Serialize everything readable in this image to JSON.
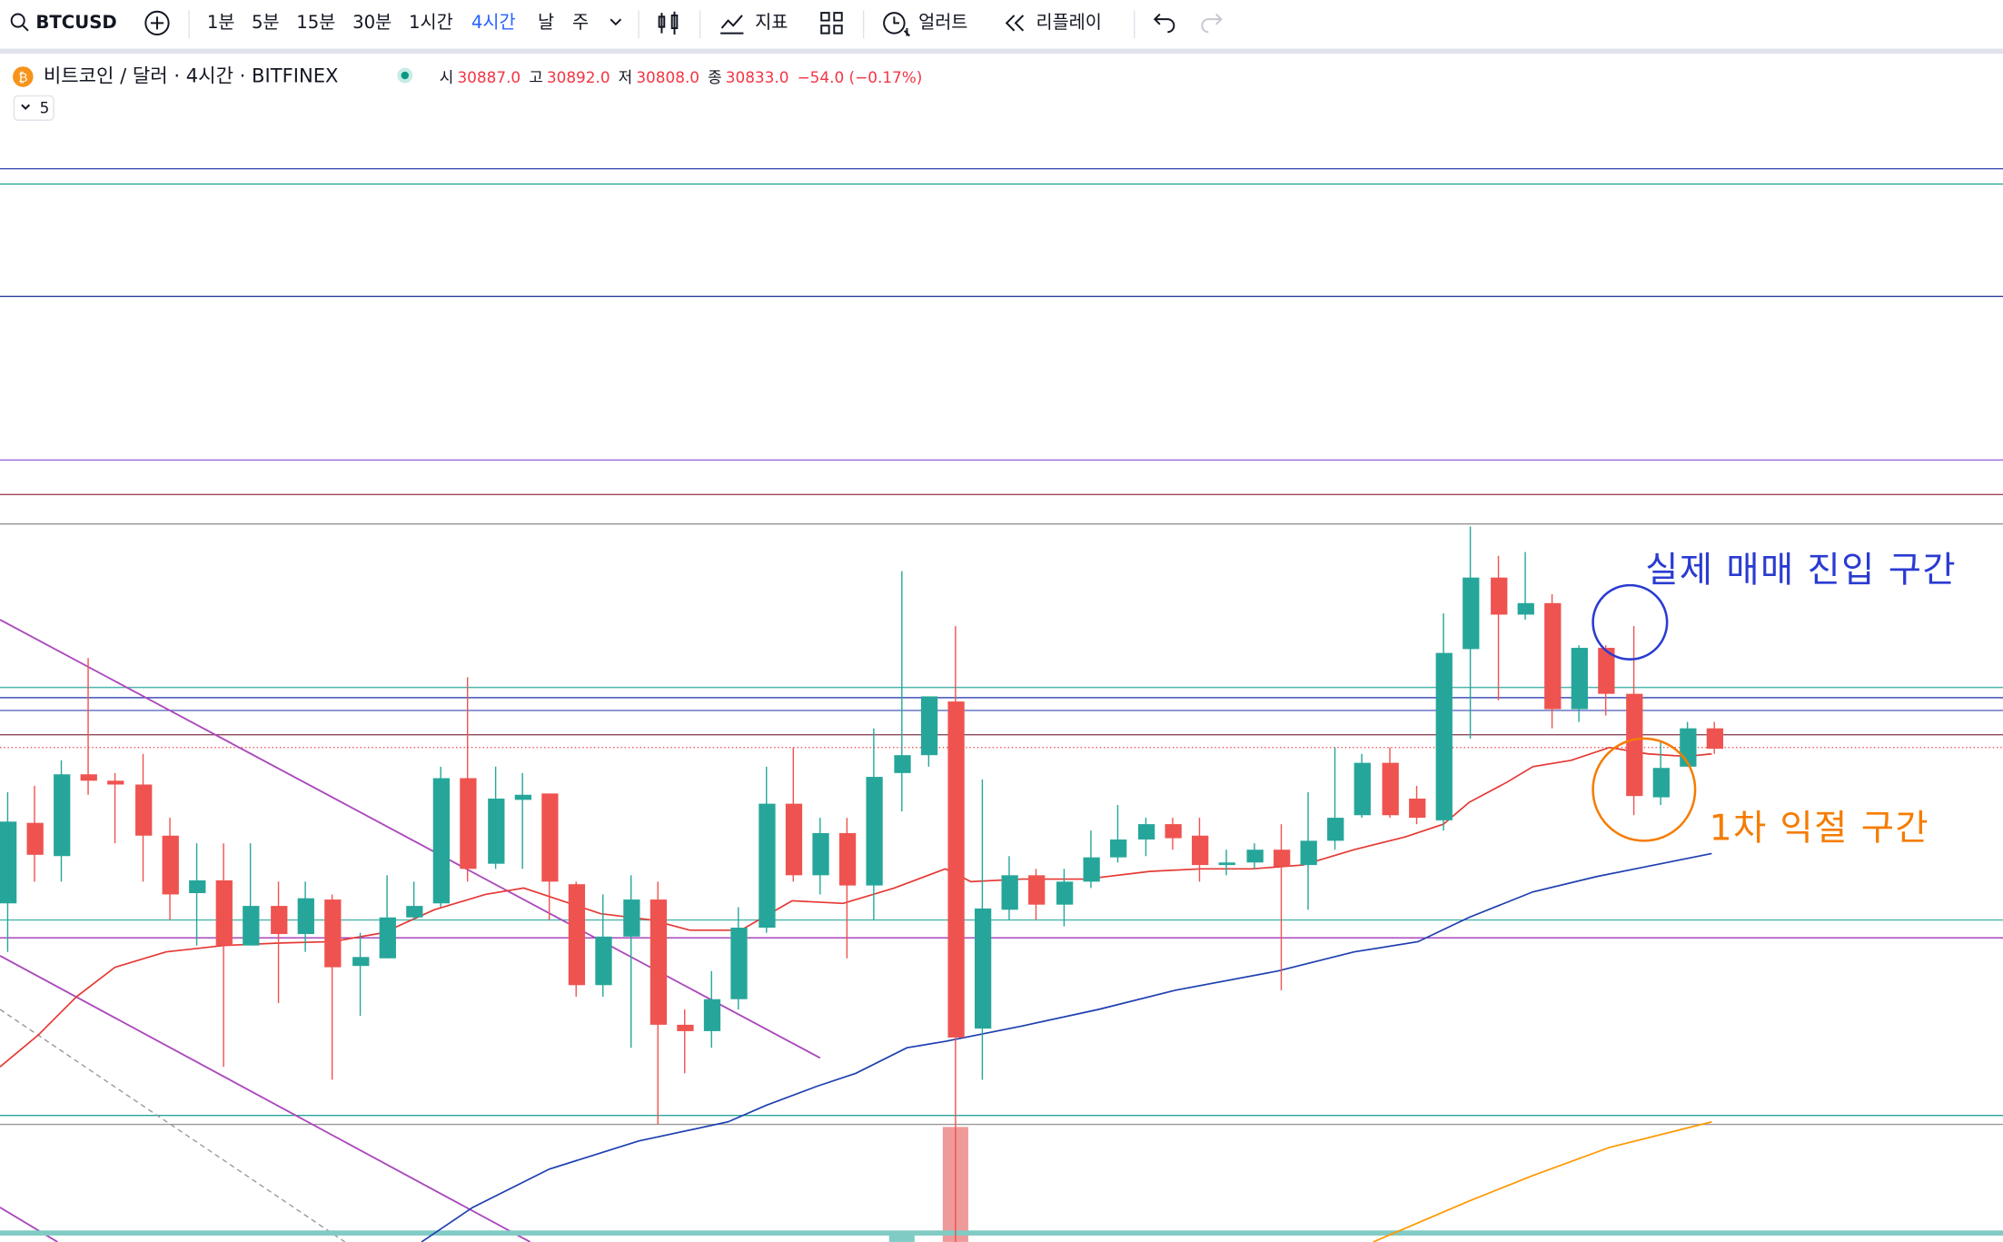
{
  "toolbar": {
    "symbol": "BTCUSD",
    "intervals": [
      "1분",
      "5분",
      "15분",
      "30분",
      "1시간",
      "4시간",
      "날",
      "주"
    ],
    "indicators": "지표",
    "alerts": "얼러트",
    "replay": "리플레이"
  },
  "header": {
    "title": "비트코인 / 달러 · 4시간 · BITFINEX",
    "ohlc": [
      {
        "label": "시",
        "value": "30887.0"
      },
      {
        "label": "고",
        "value": "30892.0"
      },
      {
        "label": "저",
        "value": "30808.0"
      },
      {
        "label": "종",
        "value": "30833.0"
      }
    ],
    "change": "−54.0 (−0.17%)",
    "collapse_count": "5"
  },
  "annotations": [
    "실제 매매 진입 구간",
    "1차 익절 구간"
  ]
}
